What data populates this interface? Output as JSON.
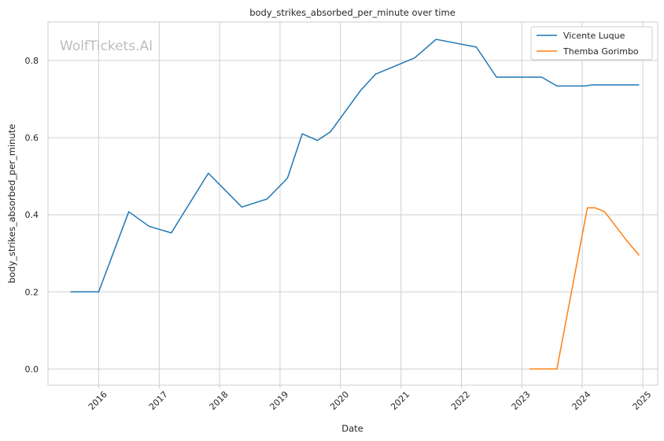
{
  "chart_data": {
    "type": "line",
    "title": "body_strikes_absorbed_per_minute over time",
    "xlabel": "Date",
    "ylabel": "body_strikes_absorbed_per_minute",
    "watermark": "WolfTickets.AI",
    "xlim": [
      "2015-03-01",
      "2025-04-01"
    ],
    "ylim": [
      -0.042,
      0.9
    ],
    "x_ticks": [
      "2016",
      "2017",
      "2018",
      "2019",
      "2020",
      "2021",
      "2022",
      "2023",
      "2024",
      "2025"
    ],
    "y_ticks": [
      "0.0",
      "0.2",
      "0.4",
      "0.6",
      "0.8"
    ],
    "grid": true,
    "legend": "top-right",
    "series": [
      {
        "name": "Vicente Luque",
        "color": "#1f77b4",
        "points": [
          [
            "2015-07-15",
            0.2
          ],
          [
            "2016-01-01",
            0.2
          ],
          [
            "2016-07-01",
            0.408
          ],
          [
            "2016-11-01",
            0.37
          ],
          [
            "2017-03-15",
            0.353
          ],
          [
            "2017-10-25",
            0.508
          ],
          [
            "2018-05-15",
            0.42
          ],
          [
            "2018-10-15",
            0.441
          ],
          [
            "2019-02-15",
            0.495
          ],
          [
            "2019-05-15",
            0.61
          ],
          [
            "2019-08-15",
            0.593
          ],
          [
            "2019-11-01",
            0.615
          ],
          [
            "2020-05-01",
            0.722
          ],
          [
            "2020-08-01",
            0.765
          ],
          [
            "2021-03-25",
            0.807
          ],
          [
            "2021-08-01",
            0.855
          ],
          [
            "2022-04-01",
            0.835
          ],
          [
            "2022-08-01",
            0.757
          ],
          [
            "2023-05-01",
            0.757
          ],
          [
            "2023-08-01",
            0.734
          ],
          [
            "2024-01-15",
            0.734
          ],
          [
            "2024-03-01",
            0.737
          ],
          [
            "2024-12-10",
            0.737
          ]
        ]
      },
      {
        "name": "Themba Gorimbo",
        "color": "#ff7f0e",
        "points": [
          [
            "2023-02-15",
            0.0
          ],
          [
            "2023-08-01",
            0.0
          ],
          [
            "2024-02-01",
            0.418
          ],
          [
            "2024-03-20",
            0.418
          ],
          [
            "2024-05-15",
            0.408
          ],
          [
            "2024-10-01",
            0.33
          ],
          [
            "2024-12-10",
            0.295
          ]
        ]
      }
    ]
  }
}
